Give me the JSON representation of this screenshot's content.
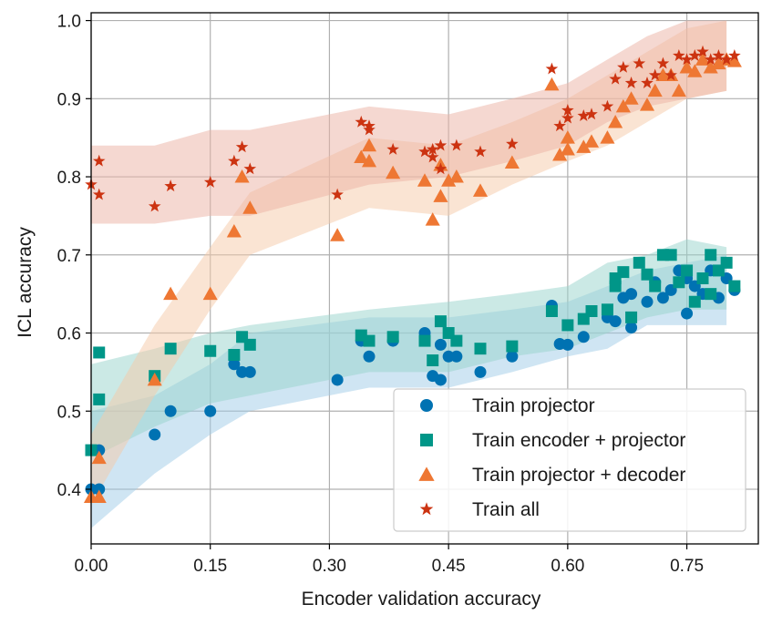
{
  "chart_data": {
    "type": "scatter",
    "title": "",
    "xlabel": "Encoder validation accuracy",
    "ylabel": "ICL accuracy",
    "xlim": [
      0.0,
      0.84
    ],
    "ylim": [
      0.33,
      1.01
    ],
    "xticks": [
      0.0,
      0.15,
      0.3,
      0.45,
      0.6,
      0.75
    ],
    "xtick_labels": [
      "0.00",
      "0.15",
      "0.30",
      "0.45",
      "0.60",
      "0.75"
    ],
    "yticks": [
      0.4,
      0.5,
      0.6,
      0.7,
      0.8,
      0.9,
      1.0
    ],
    "ytick_labels": [
      "0.4",
      "0.5",
      "0.6",
      "0.7",
      "0.8",
      "0.9",
      "1.0"
    ],
    "grid": true,
    "legend_position": "bottom-right",
    "series": [
      {
        "name": "Train projector",
        "marker": "circle",
        "color": "#0072B2",
        "band_color": "#9fcbe8",
        "points": [
          [
            0.0,
            0.45
          ],
          [
            0.01,
            0.45
          ],
          [
            0.0,
            0.4
          ],
          [
            0.01,
            0.4
          ],
          [
            0.08,
            0.47
          ],
          [
            0.1,
            0.5
          ],
          [
            0.15,
            0.5
          ],
          [
            0.18,
            0.56
          ],
          [
            0.19,
            0.55
          ],
          [
            0.2,
            0.55
          ],
          [
            0.31,
            0.54
          ],
          [
            0.34,
            0.59
          ],
          [
            0.35,
            0.57
          ],
          [
            0.38,
            0.59
          ],
          [
            0.42,
            0.6
          ],
          [
            0.43,
            0.545
          ],
          [
            0.44,
            0.54
          ],
          [
            0.44,
            0.585
          ],
          [
            0.45,
            0.57
          ],
          [
            0.46,
            0.57
          ],
          [
            0.49,
            0.55
          ],
          [
            0.53,
            0.57
          ],
          [
            0.58,
            0.635
          ],
          [
            0.59,
            0.586
          ],
          [
            0.6,
            0.585
          ],
          [
            0.62,
            0.595
          ],
          [
            0.65,
            0.62
          ],
          [
            0.66,
            0.615
          ],
          [
            0.67,
            0.645
          ],
          [
            0.68,
            0.607
          ],
          [
            0.68,
            0.65
          ],
          [
            0.7,
            0.64
          ],
          [
            0.71,
            0.665
          ],
          [
            0.72,
            0.645
          ],
          [
            0.73,
            0.655
          ],
          [
            0.74,
            0.68
          ],
          [
            0.75,
            0.625
          ],
          [
            0.75,
            0.67
          ],
          [
            0.76,
            0.66
          ],
          [
            0.77,
            0.65
          ],
          [
            0.78,
            0.68
          ],
          [
            0.79,
            0.645
          ],
          [
            0.8,
            0.67
          ],
          [
            0.81,
            0.655
          ]
        ],
        "band": {
          "x": [
            0.0,
            0.08,
            0.15,
            0.2,
            0.35,
            0.45,
            0.53,
            0.6,
            0.65,
            0.7,
            0.75,
            0.8
          ],
          "lower": [
            0.35,
            0.42,
            0.47,
            0.5,
            0.53,
            0.53,
            0.55,
            0.57,
            0.58,
            0.61,
            0.61,
            0.61
          ],
          "upper": [
            0.5,
            0.52,
            0.56,
            0.6,
            0.62,
            0.62,
            0.63,
            0.64,
            0.66,
            0.68,
            0.69,
            0.7
          ]
        }
      },
      {
        "name": "Train encoder + projector",
        "marker": "square",
        "color": "#009688",
        "band_color": "#97d3cc",
        "points": [
          [
            0.0,
            0.45
          ],
          [
            0.01,
            0.575
          ],
          [
            0.01,
            0.515
          ],
          [
            0.08,
            0.545
          ],
          [
            0.1,
            0.58
          ],
          [
            0.15,
            0.577
          ],
          [
            0.18,
            0.572
          ],
          [
            0.19,
            0.595
          ],
          [
            0.2,
            0.585
          ],
          [
            0.34,
            0.597
          ],
          [
            0.35,
            0.59
          ],
          [
            0.38,
            0.595
          ],
          [
            0.42,
            0.59
          ],
          [
            0.43,
            0.565
          ],
          [
            0.44,
            0.615
          ],
          [
            0.45,
            0.6
          ],
          [
            0.46,
            0.59
          ],
          [
            0.49,
            0.58
          ],
          [
            0.53,
            0.583
          ],
          [
            0.58,
            0.628
          ],
          [
            0.6,
            0.61
          ],
          [
            0.62,
            0.618
          ],
          [
            0.63,
            0.628
          ],
          [
            0.65,
            0.63
          ],
          [
            0.66,
            0.66
          ],
          [
            0.66,
            0.67
          ],
          [
            0.67,
            0.678
          ],
          [
            0.68,
            0.62
          ],
          [
            0.69,
            0.69
          ],
          [
            0.7,
            0.675
          ],
          [
            0.71,
            0.66
          ],
          [
            0.72,
            0.7
          ],
          [
            0.73,
            0.7
          ],
          [
            0.74,
            0.665
          ],
          [
            0.75,
            0.68
          ],
          [
            0.76,
            0.64
          ],
          [
            0.77,
            0.67
          ],
          [
            0.78,
            0.65
          ],
          [
            0.78,
            0.7
          ],
          [
            0.79,
            0.68
          ],
          [
            0.8,
            0.69
          ],
          [
            0.81,
            0.66
          ]
        ],
        "band": {
          "x": [
            0.0,
            0.08,
            0.15,
            0.2,
            0.35,
            0.45,
            0.53,
            0.6,
            0.65,
            0.7,
            0.75,
            0.8
          ],
          "lower": [
            0.44,
            0.48,
            0.51,
            0.52,
            0.55,
            0.55,
            0.57,
            0.58,
            0.6,
            0.62,
            0.63,
            0.63
          ],
          "upper": [
            0.56,
            0.58,
            0.6,
            0.61,
            0.63,
            0.64,
            0.65,
            0.66,
            0.69,
            0.7,
            0.72,
            0.71
          ]
        }
      },
      {
        "name": "Train projector + decoder",
        "marker": "triangle",
        "color": "#EE7733",
        "band_color": "#f6c9a8",
        "points": [
          [
            0.0,
            0.39
          ],
          [
            0.01,
            0.44
          ],
          [
            0.01,
            0.39
          ],
          [
            0.08,
            0.54
          ],
          [
            0.1,
            0.65
          ],
          [
            0.15,
            0.65
          ],
          [
            0.18,
            0.73
          ],
          [
            0.19,
            0.8
          ],
          [
            0.2,
            0.76
          ],
          [
            0.31,
            0.725
          ],
          [
            0.34,
            0.825
          ],
          [
            0.35,
            0.82
          ],
          [
            0.35,
            0.84
          ],
          [
            0.38,
            0.805
          ],
          [
            0.42,
            0.795
          ],
          [
            0.43,
            0.745
          ],
          [
            0.44,
            0.775
          ],
          [
            0.44,
            0.815
          ],
          [
            0.45,
            0.795
          ],
          [
            0.46,
            0.8
          ],
          [
            0.49,
            0.782
          ],
          [
            0.53,
            0.818
          ],
          [
            0.58,
            0.918
          ],
          [
            0.59,
            0.828
          ],
          [
            0.6,
            0.835
          ],
          [
            0.6,
            0.85
          ],
          [
            0.62,
            0.838
          ],
          [
            0.63,
            0.845
          ],
          [
            0.65,
            0.85
          ],
          [
            0.66,
            0.87
          ],
          [
            0.67,
            0.89
          ],
          [
            0.68,
            0.9
          ],
          [
            0.7,
            0.892
          ],
          [
            0.71,
            0.91
          ],
          [
            0.72,
            0.93
          ],
          [
            0.73,
            0.93
          ],
          [
            0.74,
            0.91
          ],
          [
            0.75,
            0.94
          ],
          [
            0.76,
            0.935
          ],
          [
            0.77,
            0.95
          ],
          [
            0.78,
            0.94
          ],
          [
            0.79,
            0.945
          ],
          [
            0.8,
            0.95
          ],
          [
            0.81,
            0.948
          ]
        ],
        "band": {
          "x": [
            0.0,
            0.08,
            0.15,
            0.2,
            0.35,
            0.45,
            0.53,
            0.6,
            0.65,
            0.7,
            0.75,
            0.8
          ],
          "lower": [
            0.38,
            0.52,
            0.63,
            0.7,
            0.76,
            0.75,
            0.79,
            0.82,
            0.84,
            0.87,
            0.9,
            0.91
          ],
          "upper": [
            0.47,
            0.61,
            0.71,
            0.78,
            0.85,
            0.84,
            0.87,
            0.9,
            0.93,
            0.96,
            0.99,
            1.0
          ]
        }
      },
      {
        "name": "Train all",
        "marker": "star",
        "color": "#CC3311",
        "band_color": "#ecb1a3",
        "points": [
          [
            0.0,
            0.79
          ],
          [
            0.01,
            0.82
          ],
          [
            0.01,
            0.777
          ],
          [
            0.08,
            0.762
          ],
          [
            0.1,
            0.788
          ],
          [
            0.15,
            0.793
          ],
          [
            0.18,
            0.82
          ],
          [
            0.19,
            0.838
          ],
          [
            0.2,
            0.81
          ],
          [
            0.31,
            0.777
          ],
          [
            0.34,
            0.87
          ],
          [
            0.35,
            0.865
          ],
          [
            0.35,
            0.86
          ],
          [
            0.38,
            0.835
          ],
          [
            0.42,
            0.832
          ],
          [
            0.43,
            0.835
          ],
          [
            0.43,
            0.825
          ],
          [
            0.44,
            0.84
          ],
          [
            0.44,
            0.81
          ],
          [
            0.46,
            0.84
          ],
          [
            0.49,
            0.832
          ],
          [
            0.53,
            0.842
          ],
          [
            0.58,
            0.938
          ],
          [
            0.59,
            0.865
          ],
          [
            0.6,
            0.875
          ],
          [
            0.6,
            0.885
          ],
          [
            0.62,
            0.878
          ],
          [
            0.63,
            0.88
          ],
          [
            0.65,
            0.89
          ],
          [
            0.66,
            0.925
          ],
          [
            0.67,
            0.94
          ],
          [
            0.68,
            0.92
          ],
          [
            0.69,
            0.945
          ],
          [
            0.7,
            0.92
          ],
          [
            0.71,
            0.93
          ],
          [
            0.72,
            0.945
          ],
          [
            0.73,
            0.93
          ],
          [
            0.74,
            0.955
          ],
          [
            0.75,
            0.95
          ],
          [
            0.76,
            0.955
          ],
          [
            0.77,
            0.96
          ],
          [
            0.78,
            0.95
          ],
          [
            0.79,
            0.955
          ],
          [
            0.8,
            0.95
          ],
          [
            0.81,
            0.955
          ]
        ],
        "band": {
          "x": [
            0.0,
            0.08,
            0.15,
            0.2,
            0.35,
            0.45,
            0.53,
            0.6,
            0.65,
            0.7,
            0.75,
            0.8
          ],
          "lower": [
            0.74,
            0.74,
            0.75,
            0.75,
            0.79,
            0.8,
            0.82,
            0.84,
            0.87,
            0.89,
            0.9,
            0.91
          ],
          "upper": [
            0.84,
            0.84,
            0.86,
            0.86,
            0.89,
            0.88,
            0.9,
            0.92,
            0.95,
            0.98,
            1.0,
            1.0
          ]
        }
      }
    ]
  }
}
